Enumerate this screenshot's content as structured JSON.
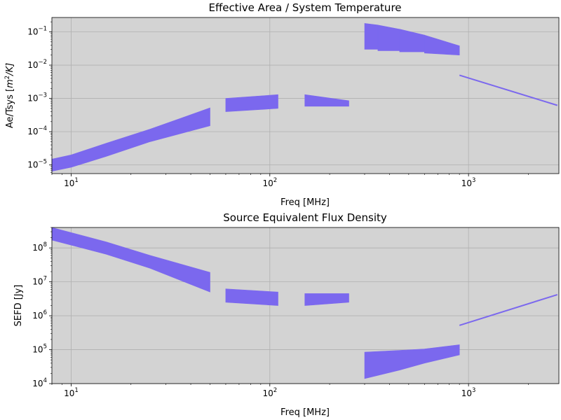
{
  "chart_data": [
    {
      "type": "area",
      "title": "Effective Area / System Temperature",
      "xlabel": "Freq [MHz]",
      "ylabel": "Ae/Tsys [m^2/K]",
      "ylabel_parts": {
        "pre": "Ae/Tsys [",
        "base": "m",
        "sup": "2",
        "post": "/K]"
      },
      "x_scale": "log",
      "y_scale": "log",
      "xlim": [
        8,
        2850
      ],
      "ylim": [
        5.5e-06,
        0.27
      ],
      "grid": true,
      "x_ticks": [
        {
          "v": 10,
          "m": "10",
          "e": "1"
        },
        {
          "v": 100,
          "m": "10",
          "e": "2"
        },
        {
          "v": 1000,
          "m": "10",
          "e": "3"
        }
      ],
      "y_ticks": [
        {
          "v": 1e-05,
          "m": "10",
          "e": "−5"
        },
        {
          "v": 0.0001,
          "m": "10",
          "e": "−4"
        },
        {
          "v": 0.001,
          "m": "10",
          "e": "−3"
        },
        {
          "v": 0.01,
          "m": "10",
          "e": "−2"
        },
        {
          "v": 0.1,
          "m": "10",
          "e": "−1"
        }
      ],
      "color": "#7b68ee",
      "bands": [
        {
          "x": [
            8,
            10,
            15,
            25,
            50
          ],
          "low": [
            6.5e-06,
            8.5e-06,
            1.8e-05,
            5e-05,
            0.00015
          ],
          "high": [
            1.5e-05,
            2e-05,
            4.5e-05,
            0.00012,
            0.00052
          ]
        },
        {
          "x": [
            60,
            110
          ],
          "low": [
            0.0004,
            0.0005
          ],
          "high": [
            0.001,
            0.0013
          ]
        },
        {
          "x": [
            150,
            250
          ],
          "low": [
            0.00058,
            0.00058
          ],
          "high": [
            0.0013,
            0.00085
          ]
        },
        {
          "x": [
            300,
            350
          ],
          "low": [
            0.03,
            0.03
          ],
          "high": [
            0.18,
            0.16
          ]
        },
        {
          "x": [
            350,
            450
          ],
          "low": [
            0.027,
            0.027
          ],
          "high": [
            0.16,
            0.12
          ]
        },
        {
          "x": [
            450,
            600
          ],
          "low": [
            0.025,
            0.025
          ],
          "high": [
            0.12,
            0.08
          ]
        },
        {
          "x": [
            600,
            900
          ],
          "low": [
            0.023,
            0.02
          ],
          "high": [
            0.08,
            0.038
          ]
        }
      ],
      "lines": [
        {
          "x": [
            900,
            2800
          ],
          "y": [
            0.005,
            0.00062
          ]
        }
      ]
    },
    {
      "type": "area",
      "title": "Source Equivalent Flux Density",
      "xlabel": "Freq [MHz]",
      "ylabel": "SEFD [Jy]",
      "x_scale": "log",
      "y_scale": "log",
      "xlim": [
        8,
        2850
      ],
      "ylim": [
        10000,
        400000000
      ],
      "grid": true,
      "x_ticks": [
        {
          "v": 10,
          "m": "10",
          "e": "1"
        },
        {
          "v": 100,
          "m": "10",
          "e": "2"
        },
        {
          "v": 1000,
          "m": "10",
          "e": "3"
        }
      ],
      "y_ticks": [
        {
          "v": 10000,
          "m": "10",
          "e": "4"
        },
        {
          "v": 100000,
          "m": "10",
          "e": "5"
        },
        {
          "v": 1000000,
          "m": "10",
          "e": "6"
        },
        {
          "v": 10000000,
          "m": "10",
          "e": "7"
        },
        {
          "v": 100000000,
          "m": "10",
          "e": "8"
        }
      ],
      "color": "#7b68ee",
      "bands": [
        {
          "x": [
            8,
            15,
            25,
            50
          ],
          "low": [
            170000000,
            65000000,
            25000000,
            5000000
          ],
          "high": [
            400000000,
            150000000,
            60000000,
            19000000
          ]
        },
        {
          "x": [
            60,
            110
          ],
          "low": [
            2500000,
            2000000
          ],
          "high": [
            6200000,
            5000000
          ]
        },
        {
          "x": [
            150,
            250
          ],
          "low": [
            2000000,
            2500000
          ],
          "high": [
            4500000,
            4500000
          ]
        },
        {
          "x": [
            300,
            450,
            600,
            900
          ],
          "low": [
            14000,
            25000,
            40000,
            70000
          ],
          "high": [
            85000,
            95000,
            105000,
            140000
          ]
        }
      ],
      "lines": [
        {
          "x": [
            900,
            2800
          ],
          "y": [
            520000,
            4200000
          ]
        }
      ]
    }
  ]
}
